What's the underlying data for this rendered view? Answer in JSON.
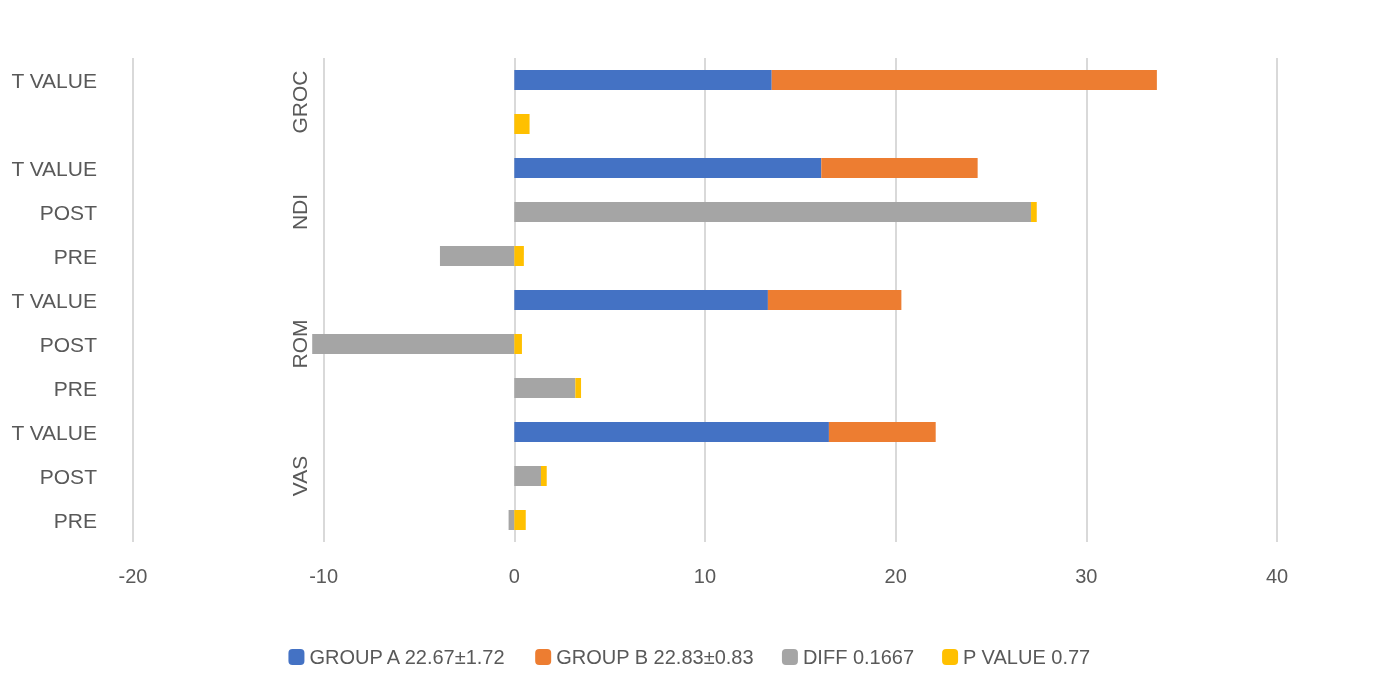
{
  "chart_data": {
    "type": "bar",
    "orientation": "horizontal",
    "stacked": true,
    "categories": [
      "T VALUE",
      null,
      "T VALUE",
      "POST",
      "PRE",
      "T VALUE",
      "POST",
      "PRE",
      "T VALUE",
      "POST",
      "PRE"
    ],
    "series": [
      {
        "name": "GROUP A 22.67±1.72",
        "color": "#4472c4",
        "values": [
          13.5,
          null,
          16.1,
          null,
          null,
          13.3,
          null,
          null,
          16.5,
          null,
          null
        ]
      },
      {
        "name": "GROUP B 22.83±0.83",
        "color": "#ed7d31",
        "values": [
          20.2,
          null,
          8.2,
          null,
          null,
          7.0,
          null,
          null,
          5.6,
          null,
          null
        ]
      },
      {
        "name": "DIFF 0.1667",
        "color": "#a5a5a5",
        "values": [
          null,
          null,
          null,
          27.1,
          -3.9,
          null,
          -10.6,
          3.2,
          null,
          1.4,
          -0.3
        ]
      },
      {
        "name": "P VALUE 0.77",
        "color": "#ffc000",
        "values": [
          null,
          0.8,
          null,
          0.3,
          0.5,
          null,
          0.4,
          0.3,
          null,
          0.3,
          0.6
        ]
      }
    ],
    "annotations": [
      "GROC",
      "NDI",
      "ROM",
      "VAS"
    ],
    "xlim": [
      -20,
      40
    ],
    "xticks": [
      -20,
      -10,
      0,
      10,
      20,
      30,
      40
    ],
    "grid": "x",
    "legend": "bottom"
  }
}
